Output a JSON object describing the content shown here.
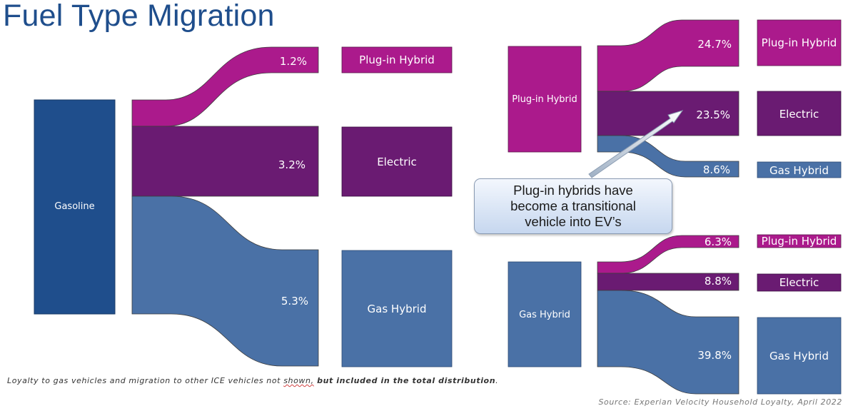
{
  "title": "Fuel Type Migration",
  "colors": {
    "gasoline": "#1f4e8c",
    "plugin": "#ab1a8c",
    "electric": "#6a1b72",
    "gashybrid": "#4a71a6",
    "callout_text": "#1a1a1a"
  },
  "left_diagram": {
    "source": "Gasoline",
    "flows": [
      {
        "target": "Plug-in Hybrid",
        "value": "1.2%"
      },
      {
        "target": "Electric",
        "value": "3.2%"
      },
      {
        "target": "Gas Hybrid",
        "value": "5.3%"
      }
    ]
  },
  "top_right_diagram": {
    "source": "Plug-in Hybrid",
    "flows": [
      {
        "target": "Plug-in Hybrid",
        "value": "24.7%"
      },
      {
        "target": "Electric",
        "value": "23.5%"
      },
      {
        "target": "Gas Hybrid",
        "value": "8.6%"
      }
    ]
  },
  "bottom_right_diagram": {
    "source": "Gas Hybrid",
    "flows": [
      {
        "target": "Plug-in Hybrid",
        "value": "6.3%"
      },
      {
        "target": "Electric",
        "value": "8.8%"
      },
      {
        "target": "Gas Hybrid",
        "value": "39.8%"
      }
    ]
  },
  "callout": {
    "line1": "Plug-in hybrids have",
    "line2": "become a transitional",
    "line3": "vehicle into EV’s"
  },
  "footnote": {
    "part1": "Loyalty to gas vehicles and migration to other ICE vehicles not ",
    "part2": "shown,",
    "part3": " but included in the total distribution",
    "part4": "."
  },
  "source": "Source: Experian Velocity Household Loyalty, April 2022"
}
